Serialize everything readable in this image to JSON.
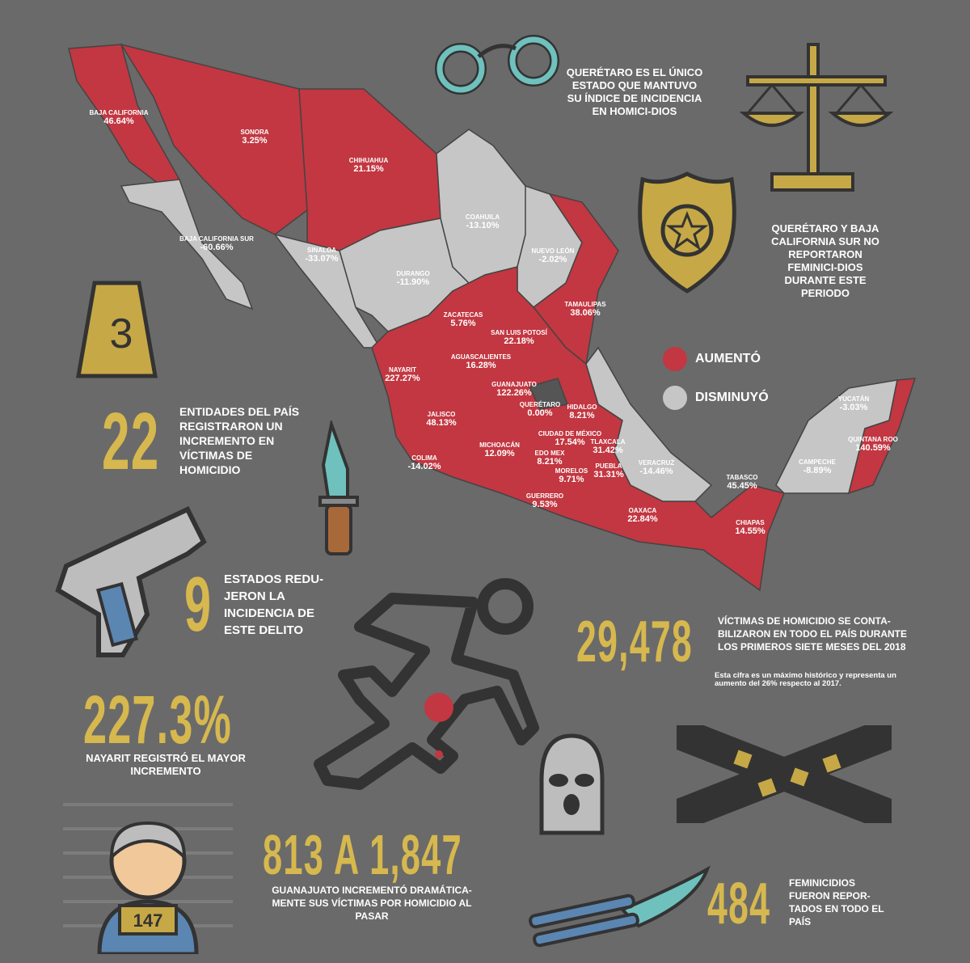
{
  "colors": {
    "increase": "#c23741",
    "decrease": "#c6c6c6",
    "neutral": "#555",
    "accent": "#d6b84e",
    "background": "#6a6a6a"
  },
  "legend": {
    "increase": "AUMENTÓ",
    "decrease": "DISMINUYÓ"
  },
  "states": [
    {
      "name": "BAJA CALIFORNIA",
      "value": "46.64%",
      "trend": "up"
    },
    {
      "name": "SONORA",
      "value": "3.25%",
      "trend": "up"
    },
    {
      "name": "CHIHUAHUA",
      "value": "21.15%",
      "trend": "up"
    },
    {
      "name": "COAHUILA",
      "value": "-13.10%",
      "trend": "down"
    },
    {
      "name": "BAJA CALIFORNIA SUR",
      "value": "-60.66%",
      "trend": "down"
    },
    {
      "name": "SINALOA",
      "value": "-33.07%",
      "trend": "down"
    },
    {
      "name": "DURANGO",
      "value": "-11.90%",
      "trend": "down"
    },
    {
      "name": "NUEVO LEÓN",
      "value": "-2.02%",
      "trend": "down"
    },
    {
      "name": "TAMAULIPAS",
      "value": "38.06%",
      "trend": "up"
    },
    {
      "name": "ZACATECAS",
      "value": "5.76%",
      "trend": "up"
    },
    {
      "name": "SAN LUIS POTOSÍ",
      "value": "22.18%",
      "trend": "up"
    },
    {
      "name": "AGUASCALIENTES",
      "value": "16.28%",
      "trend": "up"
    },
    {
      "name": "NAYARIT",
      "value": "227.27%",
      "trend": "up"
    },
    {
      "name": "GUANAJUATO",
      "value": "122.26%",
      "trend": "up"
    },
    {
      "name": "QUERÉTARO",
      "value": "0.00%",
      "trend": "flat"
    },
    {
      "name": "HIDALGO",
      "value": "8.21%",
      "trend": "up"
    },
    {
      "name": "JALISCO",
      "value": "48.13%",
      "trend": "up"
    },
    {
      "name": "CIUDAD DE MÉXICO",
      "value": "17.54%",
      "trend": "up"
    },
    {
      "name": "TLAXCALA",
      "value": "31.42%",
      "trend": "up"
    },
    {
      "name": "MICHOACÁN",
      "value": "12.09%",
      "trend": "up"
    },
    {
      "name": "EDO MEX",
      "value": "8.21%",
      "trend": "up"
    },
    {
      "name": "COLIMA",
      "value": "-14.02%",
      "trend": "down"
    },
    {
      "name": "MORELOS",
      "value": "9.71%",
      "trend": "up"
    },
    {
      "name": "PUEBLA",
      "value": "31.31%",
      "trend": "up"
    },
    {
      "name": "VERACRUZ",
      "value": "-14.46%",
      "trend": "down"
    },
    {
      "name": "GUERRERO",
      "value": "9.53%",
      "trend": "up"
    },
    {
      "name": "OAXACA",
      "value": "22.84%",
      "trend": "up"
    },
    {
      "name": "TABASCO",
      "value": "45.45%",
      "trend": "up"
    },
    {
      "name": "CHIAPAS",
      "value": "14.55%",
      "trend": "up"
    },
    {
      "name": "CAMPECHE",
      "value": "-8.89%",
      "trend": "down"
    },
    {
      "name": "YUCATÁN",
      "value": "-3.03%",
      "trend": "down"
    },
    {
      "name": "QUINTANA ROO",
      "value": "140.59%",
      "trend": "up"
    }
  ],
  "facts": {
    "queretaro_homicide": "QUERÉTARO ES EL ÚNICO ESTADO QUE MANTUVO SU ÍNDICE DE INCIDENCIA EN HOMICI-DIOS",
    "feminicide_none": "QUERÉTARO Y BAJA CALIFORNIA SUR NO REPORTARON FEMINICI-DIOS DURANTE ESTE PERIODO",
    "increase_count": "22",
    "increase_text": "ENTIDADES DEL PAÍS REGISTRARON UN INCREMENTO EN VÍCTIMAS DE HOMICIDIO",
    "decrease_count": "9",
    "decrease_text": "ESTADOS REDU-JERON LA INCIDENCIA DE ESTE DELITO",
    "total_victims": "29,478",
    "total_text": "VÍCTIMAS DE HOMICIDIO SE CONTA-BILIZARON EN TODO EL PAÍS DURANTE LOS PRIMEROS SIETE MESES DEL 2018",
    "total_note": "Esta cifra es un máximo histórico y representa un aumento del 26% respecto al 2017.",
    "max_increase": "227.3%",
    "max_text": "NAYARIT REGISTRÓ EL MAYOR INCREMENTO",
    "guanajuato_range": "813 A 1,847",
    "guanajuato_text": "GUANAJUATO INCREMENTÓ DRAMÁTICA-MENTE SUS VÍCTIMAS POR HOMICIDIO AL PASAR",
    "feminicides": "484",
    "feminicides_text": "FEMINICIDIOS FUERON REPOR-TADOS EN TODO EL PAÍS"
  },
  "icons": {
    "evidence_marker": "3",
    "prisoner_number": "147"
  }
}
